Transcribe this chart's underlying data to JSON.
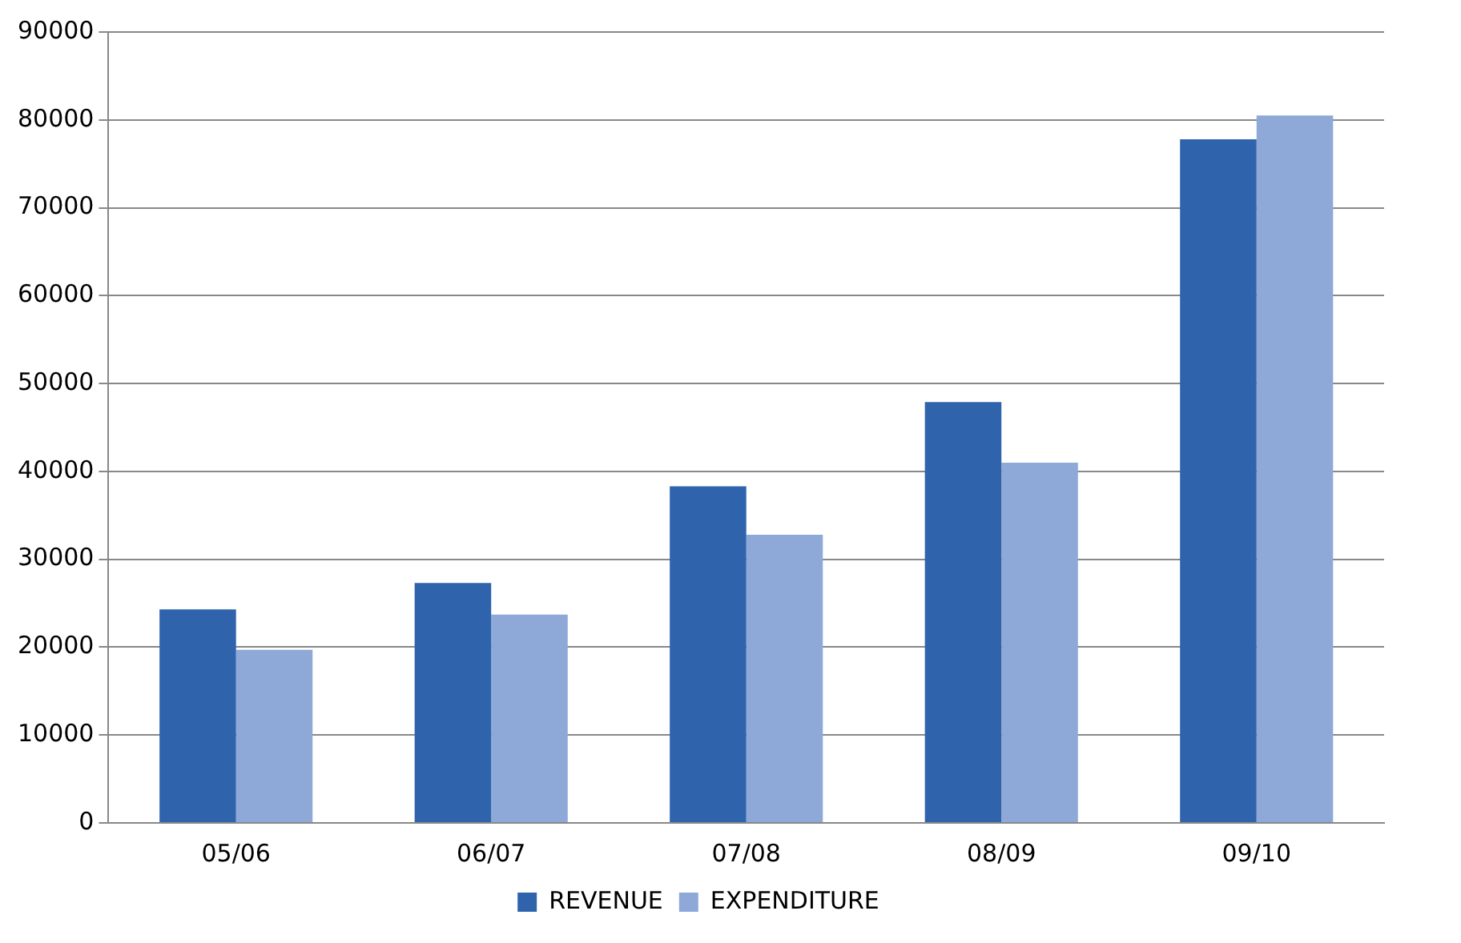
{
  "chart_data": {
    "type": "bar",
    "categories": [
      "05/06",
      "06/07",
      "07/08",
      "08/09",
      "09/10"
    ],
    "series": [
      {
        "name": "REVENUE",
        "color": "#2f64ad",
        "values": [
          24300,
          27300,
          38300,
          47900,
          77800
        ]
      },
      {
        "name": "EXPENDITURE",
        "color": "#8ea9d8",
        "values": [
          19700,
          23700,
          32800,
          41000,
          80500
        ]
      }
    ],
    "ylim": [
      0,
      90000
    ],
    "yticks": [
      0,
      10000,
      20000,
      30000,
      40000,
      50000,
      60000,
      70000,
      80000,
      90000
    ],
    "grid": "y",
    "legend": "bottom"
  }
}
